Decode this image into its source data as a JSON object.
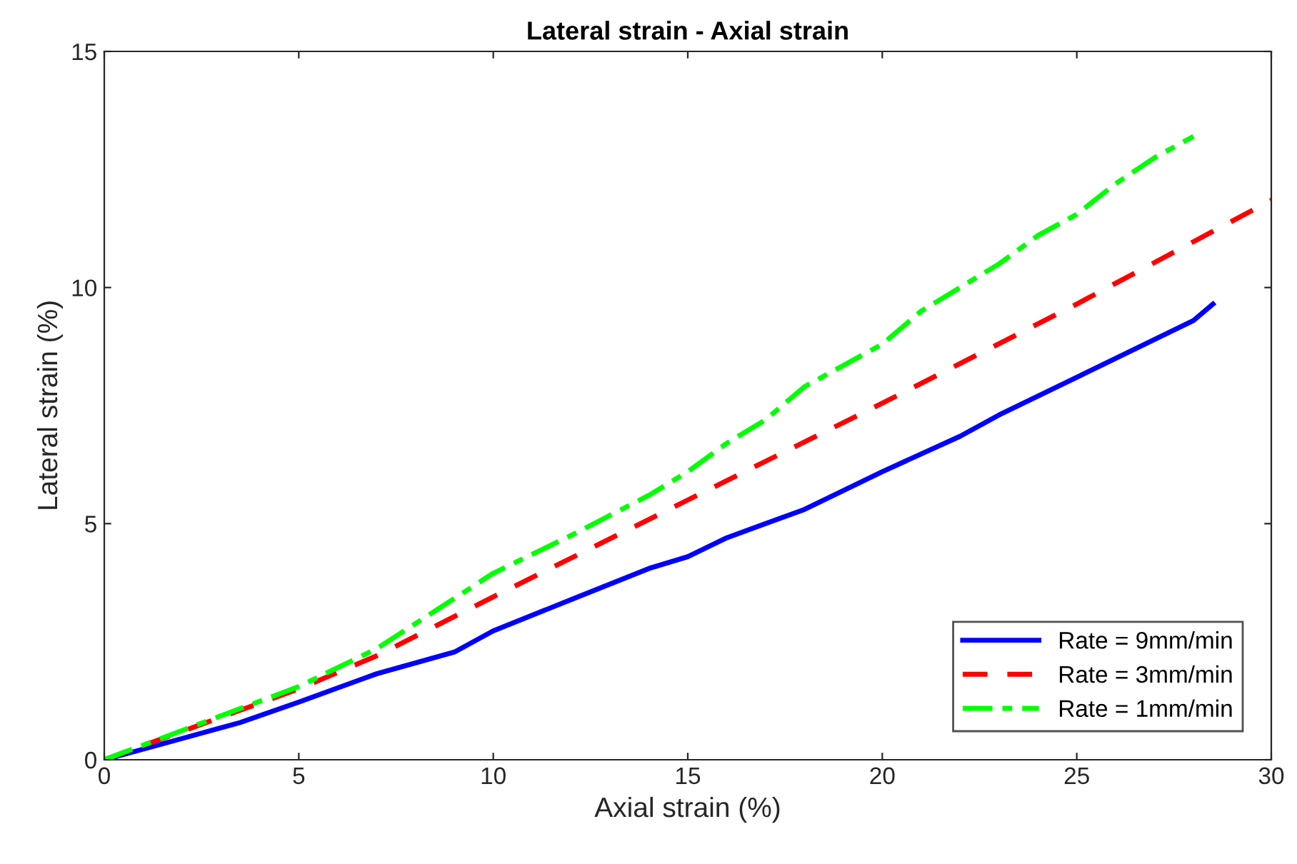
{
  "chart_data": {
    "type": "line",
    "title": "Lateral strain - Axial strain",
    "xlabel": "Axial strain (%)",
    "ylabel": "Lateral strain (%)",
    "xlim": [
      0,
      30
    ],
    "xticks": [
      0,
      5,
      10,
      15,
      20,
      25,
      30
    ],
    "ylim": [
      0,
      15
    ],
    "yticks": [
      0,
      5,
      10,
      15
    ],
    "grid": false,
    "legend": "bottom right",
    "series": [
      {
        "name": "Rate = 9mm/min",
        "color": "#0000ff",
        "line_style": "solid",
        "x": [
          0,
          2,
          3.5,
          5,
          7,
          9,
          10,
          12,
          14,
          15,
          16,
          17,
          18,
          20,
          22,
          23,
          25,
          27,
          28,
          28.5
        ],
        "values": [
          0,
          0.45,
          0.79,
          1.22,
          1.82,
          2.28,
          2.73,
          3.39,
          4.05,
          4.3,
          4.7,
          5.0,
          5.3,
          6.1,
          6.85,
          7.3,
          8.1,
          8.9,
          9.3,
          9.65
        ]
      },
      {
        "name": "Rate = 3mm/min",
        "color": "#ff0000",
        "line_style": "dashed",
        "x": [
          0,
          5,
          7,
          10,
          15,
          20,
          25,
          30
        ],
        "values": [
          0,
          1.5,
          2.2,
          3.45,
          5.5,
          7.55,
          9.65,
          11.85
        ]
      },
      {
        "name": "Rate = 1mm/min",
        "color": "#00ff00",
        "line_style": "dashdot",
        "x": [
          0,
          5,
          7,
          10,
          12,
          14,
          15,
          16,
          17,
          18,
          20,
          21,
          22,
          23,
          24,
          25,
          26,
          27,
          28
        ],
        "values": [
          0,
          1.55,
          2.35,
          3.95,
          4.75,
          5.6,
          6.1,
          6.7,
          7.2,
          7.9,
          8.8,
          9.5,
          10.0,
          10.5,
          11.1,
          11.55,
          12.2,
          12.75,
          13.2
        ]
      }
    ]
  }
}
